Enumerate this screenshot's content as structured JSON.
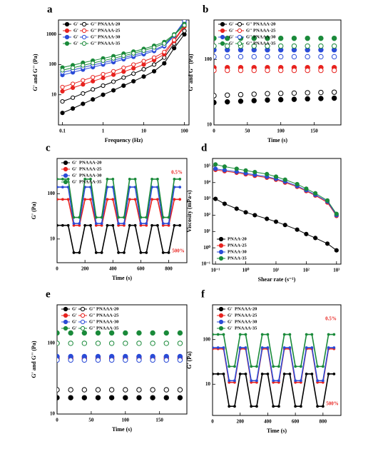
{
  "chart_data": [
    {
      "type": "line",
      "panel": "a",
      "xlabel": "Frequency (Hz)",
      "ylabel": "G' and G'' (Pa)",
      "log_x": true,
      "log_y": true,
      "legend": "upper left",
      "storage_label": "G'",
      "loss_label": "G''",
      "xlim": [
        0.08,
        130
      ],
      "ylim": [
        1,
        3000
      ],
      "xticks": [
        0.1,
        1,
        10,
        100
      ],
      "yticks": [
        10,
        100,
        1000
      ],
      "x": [
        0.1,
        0.18,
        0.32,
        0.56,
        1,
        1.8,
        3.2,
        5.6,
        10,
        18,
        32,
        56,
        100
      ],
      "series": [
        {
          "name": "PNAAA-20",
          "color": "#000000",
          "storage": [
            2.5,
            3.5,
            5,
            7,
            10,
            14,
            20,
            28,
            40,
            60,
            110,
            350,
            1000
          ],
          "loss": [
            6,
            8,
            11,
            15,
            20,
            27,
            37,
            50,
            70,
            100,
            170,
            500,
            1300
          ]
        },
        {
          "name": "PNAAA-25",
          "color": "#e8231f",
          "storage": [
            13,
            17,
            22,
            28,
            36,
            46,
            58,
            75,
            100,
            140,
            220,
            600,
            1800
          ],
          "loss": [
            18,
            23,
            30,
            38,
            48,
            60,
            78,
            100,
            130,
            170,
            260,
            650,
            2000
          ]
        },
        {
          "name": "PNAAA-30",
          "color": "#2a4bd7",
          "storage": [
            45,
            55,
            68,
            82,
            100,
            120,
            150,
            180,
            220,
            280,
            400,
            900,
            2500
          ],
          "loss": [
            55,
            66,
            80,
            96,
            115,
            140,
            170,
            205,
            250,
            310,
            430,
            950,
            2800
          ]
        },
        {
          "name": "PNAAA-35",
          "color": "#1a8a3a",
          "storage": [
            80,
            95,
            115,
            135,
            160,
            190,
            230,
            270,
            330,
            420,
            560,
            1000,
            2200
          ],
          "loss": [
            65,
            78,
            94,
            112,
            135,
            160,
            195,
            235,
            290,
            370,
            500,
            950,
            2000
          ]
        }
      ]
    },
    {
      "type": "scatter",
      "panel": "b",
      "xlabel": "Time (s)",
      "ylabel": "G' and G'' (Pa)",
      "log_x": false,
      "log_y": true,
      "legend": "upper left",
      "storage_label": "G'",
      "loss_label": "G''",
      "xlim": [
        0,
        190
      ],
      "ylim": [
        10,
        400
      ],
      "xticks": [
        0,
        50,
        100,
        150
      ],
      "yticks": [
        10,
        100
      ],
      "x": [
        0,
        20,
        40,
        60,
        80,
        100,
        120,
        140,
        160,
        180
      ],
      "series": [
        {
          "name": "PNAAA-20",
          "color": "#000000",
          "storage": [
            22,
            22.5,
            23,
            23.5,
            24,
            24.3,
            24.6,
            25,
            25.3,
            25.6
          ],
          "loss": [
            28,
            28.5,
            29,
            29.5,
            30,
            30.3,
            30.6,
            31,
            31.3,
            31.6
          ]
        },
        {
          "name": "PNAAA-25",
          "color": "#e8231f",
          "storage": [
            75,
            75,
            75,
            75,
            75,
            75,
            75,
            75,
            75,
            75
          ],
          "loss": [
            68,
            68,
            68,
            68,
            68,
            68,
            68,
            68,
            68,
            68
          ]
        },
        {
          "name": "PNAAA-30",
          "color": "#2a4bd7",
          "storage": [
            140,
            140,
            140,
            140,
            140,
            140,
            140,
            140,
            140,
            140
          ],
          "loss": [
            110,
            110,
            110,
            110,
            110,
            110,
            110,
            110,
            110,
            110
          ]
        },
        {
          "name": "PNAAA-35",
          "color": "#1a8a3a",
          "storage": [
            210,
            210,
            210,
            210,
            210,
            210,
            210,
            210,
            210,
            210
          ],
          "loss": [
            160,
            160,
            160,
            160,
            160,
            160,
            160,
            160,
            160,
            160
          ]
        }
      ]
    },
    {
      "type": "line",
      "panel": "c",
      "xlabel": "Time (s)",
      "ylabel": "G' (Pa)",
      "log_x": false,
      "log_y": true,
      "legend": "upper left",
      "series_label": "G'",
      "annotations": [
        {
          "text": "0.5%",
          "color": "#e8231f"
        },
        {
          "text": "500%",
          "color": "#e8231f"
        }
      ],
      "xlim": [
        0,
        930
      ],
      "ylim": [
        3,
        600
      ],
      "xticks": [
        0,
        200,
        400,
        600,
        800
      ],
      "yticks": [
        10,
        100
      ],
      "x": [
        0,
        40,
        80,
        120,
        160,
        200,
        240,
        280,
        320,
        360,
        400,
        440,
        480,
        520,
        560,
        600,
        640,
        680,
        720,
        760,
        800,
        840,
        880
      ],
      "series": [
        {
          "name": "PNAAA-20",
          "color": "#000000",
          "values": [
            20,
            20,
            20,
            5,
            5,
            20,
            20,
            5,
            5,
            20,
            20,
            5,
            5,
            20,
            20,
            5,
            5,
            20,
            20,
            5,
            5,
            20,
            20
          ]
        },
        {
          "name": "PNAAA-25",
          "color": "#e8231f",
          "values": [
            75,
            75,
            75,
            20,
            20,
            75,
            75,
            20,
            20,
            75,
            75,
            20,
            20,
            75,
            75,
            20,
            20,
            75,
            75,
            20,
            20,
            75,
            75
          ]
        },
        {
          "name": "PNAAA-30",
          "color": "#2a4bd7",
          "values": [
            140,
            140,
            140,
            22,
            22,
            140,
            140,
            22,
            22,
            140,
            140,
            22,
            22,
            140,
            140,
            22,
            22,
            140,
            140,
            22,
            22,
            140,
            140
          ]
        },
        {
          "name": "PNAAA-35",
          "color": "#1a8a3a",
          "values": [
            210,
            210,
            210,
            30,
            30,
            210,
            210,
            30,
            30,
            210,
            210,
            30,
            30,
            210,
            210,
            30,
            30,
            210,
            210,
            30,
            30,
            210,
            210
          ]
        }
      ]
    },
    {
      "type": "line",
      "panel": "d",
      "xlabel": "Shear rate (s⁻¹)",
      "ylabel": "Viscosity (mPa·s)",
      "log_x": true,
      "log_y": true,
      "legend": "lower left",
      "xlim": [
        0.08,
        1400
      ],
      "ylim": [
        0.1,
        300000
      ],
      "xticks": [
        {
          "value": 0.1,
          "label": "10⁻¹"
        },
        {
          "value": 1,
          "label": "10⁰"
        },
        {
          "value": 10,
          "label": "10¹"
        },
        {
          "value": 100,
          "label": "10²"
        },
        {
          "value": 1000,
          "label": "10³"
        }
      ],
      "yticks": [
        {
          "value": 0.1,
          "label": "10⁻¹"
        },
        {
          "value": 1,
          "label": "10⁰"
        },
        {
          "value": 10,
          "label": "10¹"
        },
        {
          "value": 100,
          "label": "10²"
        },
        {
          "value": 1000,
          "label": "10³"
        },
        {
          "value": 10000,
          "label": "10⁴"
        },
        {
          "value": 100000,
          "label": "10⁵"
        }
      ],
      "x": [
        0.1,
        0.2,
        0.5,
        1,
        2,
        5,
        10,
        20,
        50,
        100,
        200,
        500,
        1000
      ],
      "series": [
        {
          "name": "PNAA-20",
          "color": "#000000",
          "values": [
            1000,
            500,
            250,
            150,
            100,
            60,
            40,
            25,
            13,
            7,
            4,
            1.8,
            0.7
          ]
        },
        {
          "name": "PNAA-25",
          "color": "#e8231f",
          "values": [
            60000,
            50000,
            40000,
            32000,
            26000,
            20000,
            15000,
            10000,
            5500,
            3000,
            1600,
            600,
            90
          ]
        },
        {
          "name": "PNAA-30",
          "color": "#2a4bd7",
          "values": [
            70000,
            58000,
            46000,
            37000,
            30000,
            23000,
            17000,
            11500,
            6200,
            3400,
            1800,
            700,
            100
          ]
        },
        {
          "name": "PNAA-35",
          "color": "#1a8a3a",
          "values": [
            130000,
            95000,
            70000,
            55000,
            44000,
            33000,
            23000,
            15000,
            8000,
            4200,
            2200,
            800,
            120
          ]
        }
      ]
    },
    {
      "type": "scatter",
      "panel": "e",
      "xlabel": "Time (s)",
      "ylabel": "G' and G'' (Pa)",
      "log_x": false,
      "log_y": true,
      "legend": "upper left",
      "storage_label": "G'",
      "loss_label": "G''",
      "xlim": [
        0,
        190
      ],
      "ylim": [
        10,
        350
      ],
      "xticks": [
        0,
        50,
        100,
        150
      ],
      "yticks": [
        10,
        100
      ],
      "x": [
        0,
        20,
        40,
        60,
        80,
        100,
        120,
        140,
        160,
        180
      ],
      "series": [
        {
          "name": "PNAAA-20",
          "color": "#000000",
          "storage": [
            17,
            17,
            17,
            17,
            17,
            17,
            17,
            17,
            17,
            17
          ],
          "loss": [
            22,
            22,
            22,
            22,
            22,
            22,
            22,
            22,
            22,
            22
          ]
        },
        {
          "name": "PNAAA-25",
          "color": "#e8231f",
          "storage": [
            63,
            63,
            63,
            63,
            63,
            63,
            63,
            63,
            63,
            63
          ],
          "loss": [
            60,
            60,
            60,
            60,
            60,
            60,
            60,
            60,
            60,
            60
          ]
        },
        {
          "name": "PNAAA-30",
          "color": "#2a4bd7",
          "storage": [
            65,
            65,
            65,
            65,
            65,
            65,
            65,
            65,
            65,
            65
          ],
          "loss": [
            58,
            58,
            58,
            58,
            58,
            58,
            58,
            58,
            58,
            58
          ]
        },
        {
          "name": "PNAAA-35",
          "color": "#1a8a3a",
          "storage": [
            140,
            140,
            140,
            140,
            140,
            140,
            140,
            140,
            140,
            140
          ],
          "loss": [
            100,
            100,
            100,
            100,
            100,
            100,
            100,
            100,
            100,
            100
          ]
        }
      ]
    },
    {
      "type": "line",
      "panel": "f",
      "xlabel": "Time (s)",
      "ylabel": "G' (Pa)",
      "log_x": false,
      "log_y": true,
      "legend": "upper left",
      "series_label": "G'",
      "annotations": [
        {
          "text": "0.5%",
          "color": "#e8231f"
        },
        {
          "text": "500%",
          "color": "#e8231f"
        }
      ],
      "xlim": [
        0,
        930
      ],
      "ylim": [
        2,
        600
      ],
      "xticks": [
        0,
        200,
        400,
        600,
        800
      ],
      "yticks": [
        10,
        100
      ],
      "x": [
        0,
        40,
        80,
        120,
        160,
        200,
        240,
        280,
        320,
        360,
        400,
        440,
        480,
        520,
        560,
        600,
        640,
        680,
        720,
        760,
        800,
        840,
        880
      ],
      "series": [
        {
          "name": "PNAAA-20",
          "color": "#000000",
          "values": [
            17,
            17,
            17,
            3.2,
            3.2,
            17,
            17,
            3.2,
            3.2,
            17,
            17,
            3.2,
            3.2,
            17,
            17,
            3.2,
            3.2,
            17,
            17,
            3.2,
            3.2,
            17,
            17
          ]
        },
        {
          "name": "PNAAA-25",
          "color": "#e8231f",
          "values": [
            62,
            62,
            62,
            11,
            11,
            62,
            62,
            11,
            11,
            62,
            62,
            11,
            11,
            62,
            62,
            11,
            11,
            62,
            62,
            11,
            11,
            62,
            62
          ]
        },
        {
          "name": "PNAAA-30",
          "color": "#2a4bd7",
          "values": [
            66,
            66,
            66,
            12,
            12,
            66,
            66,
            12,
            12,
            66,
            66,
            12,
            12,
            66,
            66,
            12,
            12,
            66,
            66,
            12,
            12,
            66,
            66
          ]
        },
        {
          "name": "PNAAA-35",
          "color": "#1a8a3a",
          "values": [
            130,
            130,
            130,
            25,
            25,
            130,
            130,
            25,
            25,
            130,
            130,
            25,
            25,
            130,
            130,
            25,
            25,
            130,
            130,
            25,
            25,
            130,
            130
          ]
        }
      ]
    }
  ]
}
